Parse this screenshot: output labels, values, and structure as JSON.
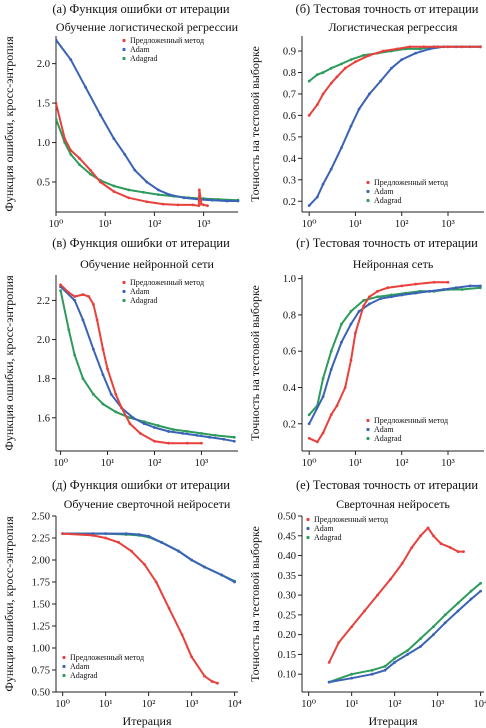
{
  "colors": {
    "proposed": "#e8413c",
    "adam": "#3a62b5",
    "adagrad": "#2e9a5c"
  },
  "legend": {
    "proposed": "Предложенный метод",
    "adam": "Adam",
    "adagrad": "Adagrad"
  },
  "chart_data": [
    {
      "type": "line",
      "panel": "a",
      "title": "(а) Функция ошибки от итерации",
      "subtitle": "Обучение логистической регрессии",
      "ylabel": "Функция ошибки, кросс-энтропия",
      "xlabel": "",
      "xscale": "log",
      "xlim": [
        1,
        5000
      ],
      "ylim": [
        0.12,
        2.35
      ],
      "x_ticks": [
        "10⁰",
        "10¹",
        "10²",
        "10³"
      ],
      "y_ticks": [
        "0.5",
        "1.0",
        "1.5",
        "2.0"
      ],
      "legend_position": "top-right",
      "series": [
        {
          "name": "Предложенный метод",
          "x": [
            1,
            1.5,
            2,
            3,
            5,
            8,
            15,
            30,
            70,
            150,
            300,
            600,
            800,
            820,
            900,
            1000,
            1200
          ],
          "y": [
            1.5,
            1.05,
            0.9,
            0.8,
            0.65,
            0.5,
            0.38,
            0.3,
            0.25,
            0.22,
            0.21,
            0.21,
            0.2,
            0.4,
            0.22,
            0.21,
            0.2
          ]
        },
        {
          "name": "Adam",
          "x": [
            1,
            2,
            4,
            8,
            15,
            25,
            40,
            70,
            120,
            200,
            400,
            800,
            1500,
            3000,
            5000
          ],
          "y": [
            2.3,
            2.05,
            1.7,
            1.35,
            1.05,
            0.85,
            0.65,
            0.5,
            0.4,
            0.34,
            0.3,
            0.28,
            0.27,
            0.26,
            0.26
          ]
        },
        {
          "name": "Adagrad",
          "x": [
            1,
            1.5,
            2,
            3,
            5,
            8,
            15,
            30,
            60,
            120,
            250,
            500,
            1000,
            2000,
            5000
          ],
          "y": [
            1.3,
            1.0,
            0.85,
            0.72,
            0.6,
            0.52,
            0.45,
            0.4,
            0.37,
            0.34,
            0.32,
            0.3,
            0.29,
            0.28,
            0.27
          ]
        }
      ]
    },
    {
      "type": "line",
      "panel": "b",
      "title": "(б) Тестовая точность от итерации",
      "subtitle": "Логистическая регрессия",
      "ylabel": "Точность на тестовой выборке",
      "xlabel": "",
      "xscale": "log",
      "xlim": [
        0.7,
        6000
      ],
      "ylim": [
        0.15,
        0.97
      ],
      "x_ticks": [
        "10⁰",
        "10¹",
        "10²",
        "10³"
      ],
      "y_ticks": [
        "0.2",
        "0.3",
        "0.4",
        "0.5",
        "0.6",
        "0.7",
        "0.8",
        "0.9"
      ],
      "legend_position": "bottom-right",
      "series": [
        {
          "name": "Предложенный метод",
          "x": [
            1,
            1.5,
            2,
            3,
            4,
            6,
            10,
            20,
            40,
            80,
            150,
            300,
            600,
            1000,
            2000,
            5000
          ],
          "y": [
            0.6,
            0.65,
            0.7,
            0.75,
            0.78,
            0.82,
            0.85,
            0.88,
            0.9,
            0.91,
            0.92,
            0.92,
            0.92,
            0.92,
            0.92,
            0.92
          ]
        },
        {
          "name": "Adam",
          "x": [
            1,
            1.5,
            2,
            3,
            5,
            8,
            12,
            20,
            35,
            60,
            100,
            200,
            400,
            800,
            1500,
            3000,
            5000
          ],
          "y": [
            0.18,
            0.22,
            0.28,
            0.35,
            0.45,
            0.55,
            0.63,
            0.7,
            0.76,
            0.82,
            0.86,
            0.89,
            0.91,
            0.92,
            0.92,
            0.92,
            0.92
          ]
        },
        {
          "name": "Adagrad",
          "x": [
            1,
            1.5,
            2,
            3,
            5,
            8,
            15,
            30,
            60,
            120,
            250,
            500,
            1000,
            2000,
            5000
          ],
          "y": [
            0.76,
            0.79,
            0.8,
            0.82,
            0.84,
            0.86,
            0.88,
            0.89,
            0.9,
            0.91,
            0.91,
            0.92,
            0.92,
            0.92,
            0.92
          ]
        }
      ]
    },
    {
      "type": "line",
      "panel": "c",
      "title": "(в) Функция ошибки от итерации",
      "subtitle": "Обучение нейронной сети",
      "ylabel": "Функция ошибки, кросс-энтропия",
      "xlabel": "",
      "xscale": "log",
      "xlim": [
        0.8,
        6000
      ],
      "ylim": [
        1.43,
        2.33
      ],
      "x_ticks": [
        "10⁰",
        "10¹",
        "10²",
        "10³"
      ],
      "y_ticks": [
        "1.6",
        "1.8",
        "2.0",
        "2.2"
      ],
      "legend_position": "top-right",
      "series": [
        {
          "name": "Предложенный метод",
          "x": [
            1,
            1.5,
            2,
            3,
            4,
            5,
            6,
            8,
            10,
            15,
            20,
            30,
            50,
            100,
            200,
            500,
            1000
          ],
          "y": [
            2.28,
            2.24,
            2.22,
            2.23,
            2.22,
            2.18,
            2.1,
            1.95,
            1.85,
            1.72,
            1.65,
            1.57,
            1.52,
            1.48,
            1.47,
            1.47,
            1.47
          ]
        },
        {
          "name": "Adam",
          "x": [
            1,
            2,
            3,
            5,
            8,
            12,
            20,
            35,
            60,
            100,
            200,
            400,
            800,
            1500,
            3000,
            5000
          ],
          "y": [
            2.27,
            2.2,
            2.1,
            1.95,
            1.82,
            1.72,
            1.65,
            1.6,
            1.57,
            1.55,
            1.53,
            1.52,
            1.51,
            1.5,
            1.49,
            1.48
          ]
        },
        {
          "name": "Adagrad",
          "x": [
            1,
            1.5,
            2,
            3,
            5,
            8,
            15,
            30,
            60,
            120,
            250,
            500,
            1000,
            2000,
            5000
          ],
          "y": [
            2.25,
            2.05,
            1.92,
            1.8,
            1.72,
            1.67,
            1.63,
            1.6,
            1.58,
            1.56,
            1.54,
            1.53,
            1.52,
            1.51,
            1.5
          ]
        }
      ]
    },
    {
      "type": "line",
      "panel": "d",
      "title": "(г) Тестовая точность от итерации",
      "subtitle": "Нейронная сеть",
      "ylabel": "Точность на тестовой выборке",
      "xlabel": "",
      "xscale": "log",
      "xlim": [
        0.7,
        6000
      ],
      "ylim": [
        0.05,
        1.02
      ],
      "x_ticks": [
        "10⁰",
        "10¹",
        "10²",
        "10³"
      ],
      "y_ticks": [
        "0.2",
        "0.4",
        "0.6",
        "0.8",
        "1.0"
      ],
      "legend_position": "bottom-right",
      "series": [
        {
          "name": "Предложенный метод",
          "x": [
            1,
            1.5,
            2,
            3,
            4,
            6,
            8,
            10,
            15,
            20,
            30,
            50,
            100,
            200,
            500,
            1000
          ],
          "y": [
            0.12,
            0.1,
            0.15,
            0.25,
            0.3,
            0.4,
            0.55,
            0.7,
            0.85,
            0.9,
            0.93,
            0.95,
            0.96,
            0.97,
            0.98,
            0.98
          ]
        },
        {
          "name": "Adam",
          "x": [
            1,
            2,
            3,
            5,
            8,
            12,
            20,
            35,
            60,
            100,
            200,
            400,
            800,
            1500,
            3000,
            5000
          ],
          "y": [
            0.2,
            0.35,
            0.5,
            0.65,
            0.75,
            0.82,
            0.86,
            0.89,
            0.9,
            0.91,
            0.92,
            0.93,
            0.94,
            0.95,
            0.96,
            0.96
          ]
        },
        {
          "name": "Adagrad",
          "x": [
            1,
            1.5,
            2,
            3,
            5,
            8,
            15,
            30,
            60,
            120,
            250,
            500,
            1000,
            2000,
            5000
          ],
          "y": [
            0.25,
            0.3,
            0.45,
            0.6,
            0.75,
            0.82,
            0.88,
            0.9,
            0.91,
            0.92,
            0.93,
            0.93,
            0.94,
            0.94,
            0.95
          ]
        }
      ]
    },
    {
      "type": "line",
      "panel": "e",
      "title": "(д) Функция ошибки от итерации",
      "subtitle": "Обучение сверточной нейросети",
      "ylabel": "Функция ошибки, кросс-энтропия",
      "xlabel": "Итерация",
      "xscale": "log",
      "xlim": [
        0.7,
        12000
      ],
      "ylim": [
        0.5,
        2.5
      ],
      "x_ticks": [
        "10⁰",
        "10¹",
        "10²",
        "10³",
        "10⁴"
      ],
      "y_ticks": [
        "0.50",
        "0.75",
        "1.00",
        "1.25",
        "1.50",
        "1.75",
        "2.00",
        "2.25",
        "2.50"
      ],
      "legend_position": "bottom-left",
      "series": [
        {
          "name": "Предложенный метод",
          "x": [
            1,
            5,
            10,
            20,
            40,
            80,
            150,
            300,
            600,
            1000,
            2000,
            3000,
            4000
          ],
          "y": [
            2.3,
            2.28,
            2.25,
            2.2,
            2.1,
            1.95,
            1.75,
            1.45,
            1.15,
            0.9,
            0.68,
            0.62,
            0.6
          ]
        },
        {
          "name": "Adam",
          "x": [
            1,
            5,
            10,
            30,
            60,
            100,
            200,
            500,
            1000,
            2000,
            5000,
            10000
          ],
          "y": [
            2.3,
            2.3,
            2.3,
            2.3,
            2.29,
            2.27,
            2.2,
            2.1,
            2.0,
            1.92,
            1.83,
            1.75
          ]
        },
        {
          "name": "Adagrad",
          "x": [
            1,
            5,
            10,
            30,
            60,
            100,
            200,
            500,
            1000,
            2000,
            5000,
            10000
          ],
          "y": [
            2.3,
            2.3,
            2.3,
            2.29,
            2.28,
            2.26,
            2.2,
            2.1,
            2.0,
            1.92,
            1.83,
            1.76
          ]
        }
      ]
    },
    {
      "type": "line",
      "panel": "f",
      "title": "(е) Тестовая точность от итерации",
      "subtitle": "Сверточная нейросеть",
      "ylabel": "Точность на тестовой выборке",
      "xlabel": "Итерация",
      "xscale": "log",
      "xlim": [
        0.7,
        12000
      ],
      "ylim": [
        0.055,
        0.5
      ],
      "x_ticks": [
        "10⁰",
        "10¹",
        "10²",
        "10³",
        "10⁴"
      ],
      "y_ticks": [
        "0.10",
        "0.15",
        "0.20",
        "0.25",
        "0.30",
        "0.35",
        "0.40",
        "0.45",
        "0.50"
      ],
      "legend_position": "top-left",
      "series": [
        {
          "name": "Предложенный метод",
          "x": [
            3,
            5,
            10,
            20,
            40,
            80,
            150,
            250,
            400,
            600,
            800,
            1200,
            2000,
            3000,
            4000
          ],
          "y": [
            0.13,
            0.18,
            0.22,
            0.26,
            0.3,
            0.34,
            0.38,
            0.42,
            0.45,
            0.47,
            0.45,
            0.43,
            0.42,
            0.41,
            0.41
          ]
        },
        {
          "name": "Adam",
          "x": [
            3,
            10,
            30,
            60,
            100,
            200,
            400,
            800,
            1500,
            3000,
            6000,
            10000
          ],
          "y": [
            0.08,
            0.09,
            0.1,
            0.11,
            0.13,
            0.15,
            0.17,
            0.2,
            0.23,
            0.26,
            0.29,
            0.31
          ]
        },
        {
          "name": "Adagrad",
          "x": [
            3,
            10,
            30,
            60,
            100,
            200,
            400,
            800,
            1500,
            3000,
            6000,
            10000
          ],
          "y": [
            0.08,
            0.1,
            0.11,
            0.12,
            0.14,
            0.16,
            0.19,
            0.22,
            0.25,
            0.28,
            0.31,
            0.33
          ]
        }
      ]
    }
  ]
}
